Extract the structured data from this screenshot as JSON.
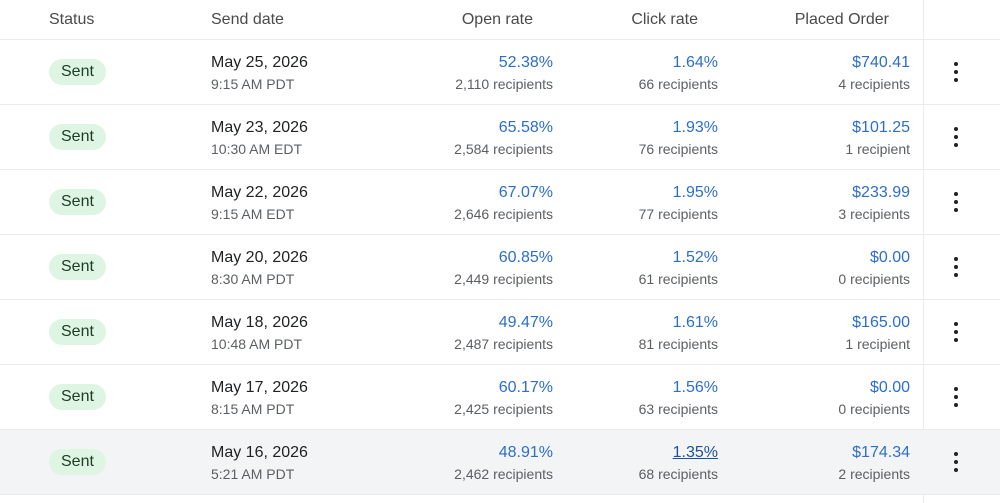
{
  "table": {
    "columns": {
      "status": "Status",
      "send_date": "Send date",
      "open_rate": "Open rate",
      "click_rate": "Click rate",
      "placed_order": "Placed Order"
    },
    "rows": [
      {
        "status": "Sent",
        "date": "May 25, 2026",
        "time": "9:15 AM PDT",
        "open_rate": "52.38%",
        "open_recipients": "2,110 recipients",
        "click_rate": "1.64%",
        "click_recipients": "66 recipients",
        "order_value": "$740.41",
        "order_recipients": "4 recipients"
      },
      {
        "status": "Sent",
        "date": "May 23, 2026",
        "time": "10:30 AM EDT",
        "open_rate": "65.58%",
        "open_recipients": "2,584 recipients",
        "click_rate": "1.93%",
        "click_recipients": "76 recipients",
        "order_value": "$101.25",
        "order_recipients": "1 recipient"
      },
      {
        "status": "Sent",
        "date": "May 22, 2026",
        "time": "9:15 AM EDT",
        "open_rate": "67.07%",
        "open_recipients": "2,646 recipients",
        "click_rate": "1.95%",
        "click_recipients": "77 recipients",
        "order_value": "$233.99",
        "order_recipients": "3 recipients"
      },
      {
        "status": "Sent",
        "date": "May 20, 2026",
        "time": "8:30 AM PDT",
        "open_rate": "60.85%",
        "open_recipients": "2,449 recipients",
        "click_rate": "1.52%",
        "click_recipients": "61 recipients",
        "order_value": "$0.00",
        "order_recipients": "0 recipients"
      },
      {
        "status": "Sent",
        "date": "May 18, 2026",
        "time": "10:48 AM PDT",
        "open_rate": "49.47%",
        "open_recipients": "2,487 recipients",
        "click_rate": "1.61%",
        "click_recipients": "81 recipients",
        "order_value": "$165.00",
        "order_recipients": "1 recipient"
      },
      {
        "status": "Sent",
        "date": "May 17, 2026",
        "time": "8:15 AM PDT",
        "open_rate": "60.17%",
        "open_recipients": "2,425 recipients",
        "click_rate": "1.56%",
        "click_recipients": "63 recipients",
        "order_value": "$0.00",
        "order_recipients": "0 recipients"
      },
      {
        "status": "Sent",
        "date": "May 16, 2026",
        "time": "5:21 AM PDT",
        "open_rate": "48.91%",
        "open_recipients": "2,462 recipients",
        "click_rate": "1.35%",
        "click_recipients": "68 recipients",
        "order_value": "$174.34",
        "order_recipients": "2 recipients"
      }
    ]
  },
  "icons": {
    "row_actions": "more-vertical-icon"
  },
  "colors": {
    "link": "#2c6ecb",
    "badge_bg": "#dff5e3",
    "row_highlight": "#f3f4f5"
  }
}
